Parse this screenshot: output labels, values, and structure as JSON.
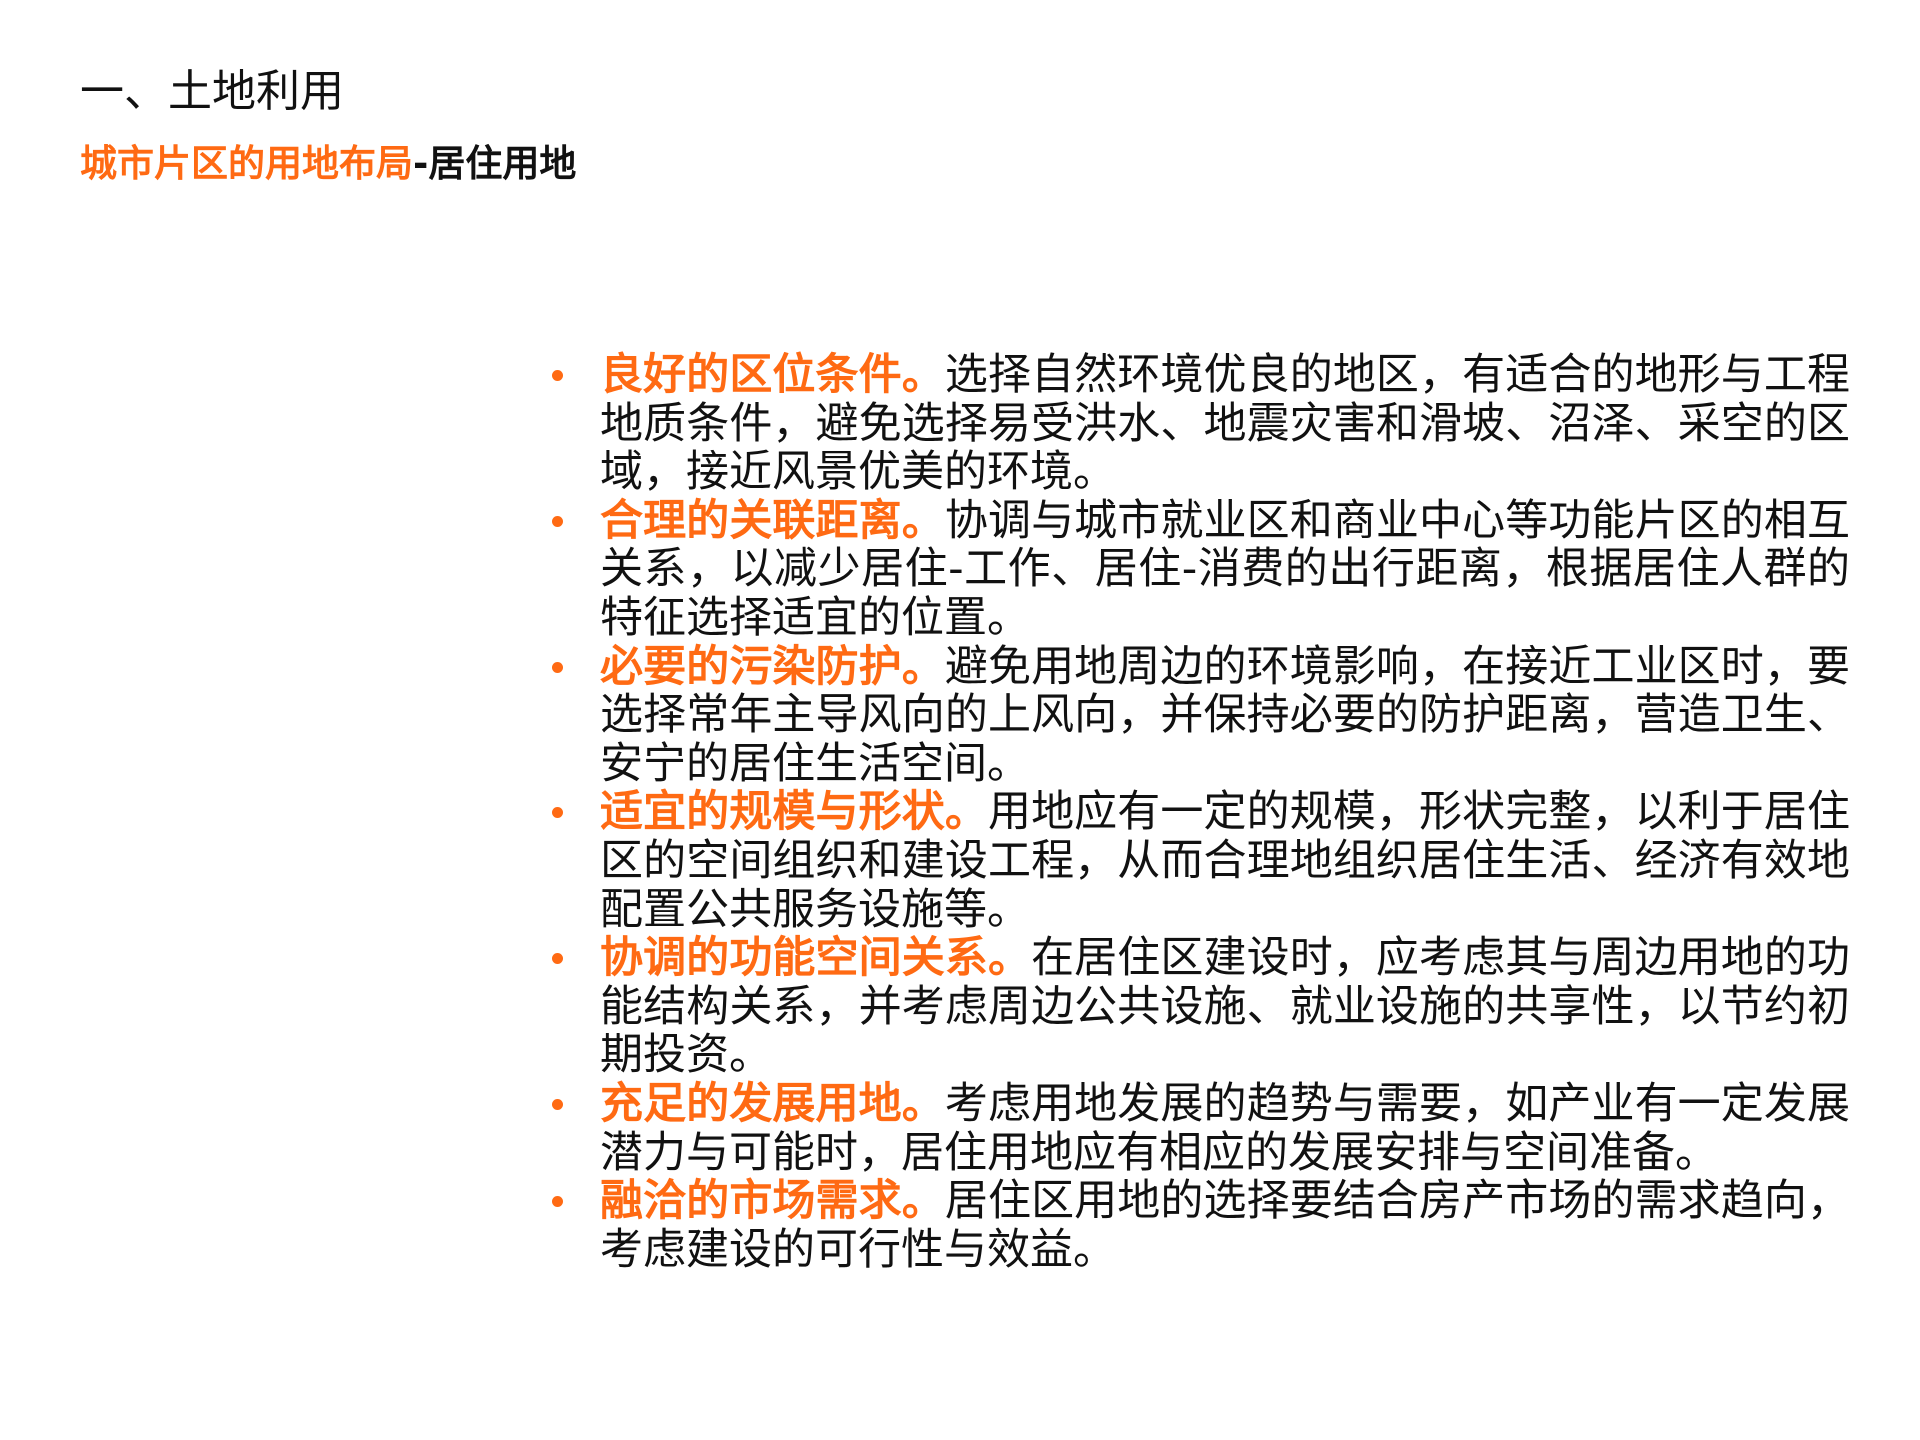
{
  "header": {
    "title": "一、土地利用",
    "subtitle_accent": "城市片区的用地布局",
    "subtitle_rest": "-居住用地"
  },
  "colors": {
    "accent": "#ff6a13",
    "text": "#111111"
  },
  "items": [
    {
      "head": "良好的区位条件。",
      "lines": [
        "选择自然环境优良的地区，有适合的地形与工程",
        "地质条件，避免选择易受洪水、地震灾害和滑坡、沼泽、采空的区",
        "域，接近风景优美的环境。"
      ]
    },
    {
      "head": "合理的关联距离。",
      "lines": [
        "协调与城市就业区和商业中心等功能片区的相互",
        "关系，以减少居住-工作、居住-消费的出行距离，根据居住人群的",
        "特征选择适宜的位置。"
      ]
    },
    {
      "head": "必要的污染防护。",
      "lines": [
        "避免用地周边的环境影响，在接近工业区时，要",
        "选择常年主导风向的上风向，并保持必要的防护距离，营造卫生、",
        "安宁的居住生活空间。"
      ]
    },
    {
      "head": "适宜的规模与形状。",
      "lines": [
        "用地应有一定的规模，形状完整，以利于居住",
        "区的空间组织和建设工程，从而合理地组织居住生活、经济有效地",
        "配置公共服务设施等。"
      ]
    },
    {
      "head": "协调的功能空间关系。",
      "lines": [
        "在居住区建设时，应考虑其与周边用地的功",
        "能结构关系，并考虑周边公共设施、就业设施的共享性，以节约初",
        "期投资。"
      ]
    },
    {
      "head": "充足的发展用地。",
      "lines": [
        "考虑用地发展的趋势与需要，如产业有一定发展",
        "潜力与可能时，居住用地应有相应的发展安排与空间准备。"
      ]
    },
    {
      "head": "融洽的市场需求。",
      "lines": [
        "居住区用地的选择要结合房产市场的需求趋向，",
        "考虑建设的可行性与效益。"
      ]
    }
  ]
}
